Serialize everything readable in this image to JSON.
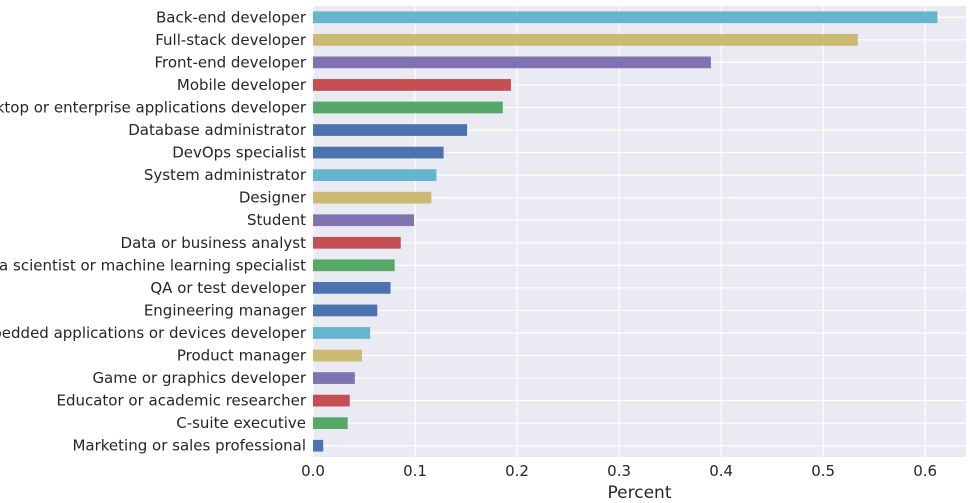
{
  "chart_data": {
    "type": "bar",
    "orientation": "horizontal",
    "title": "",
    "xlabel": "Percent",
    "ylabel": "",
    "xlim": [
      0,
      0.64
    ],
    "grid": true,
    "x_ticks": [
      0.0,
      0.1,
      0.2,
      0.3,
      0.4,
      0.5,
      0.6
    ],
    "x_tick_labels": [
      "0.0",
      "0.1",
      "0.2",
      "0.3",
      "0.4",
      "0.5",
      "0.6"
    ],
    "categories": [
      "Back-end developer",
      "Full-stack developer",
      "Front-end developer",
      "Mobile developer",
      "Desktop or enterprise applications developer",
      "Database administrator",
      "DevOps specialist",
      "System administrator",
      "Designer",
      "Student",
      "Data or business analyst",
      "Data scientist or machine learning specialist",
      "QA or test developer",
      "Engineering manager",
      "Embedded applications or devices developer",
      "Product manager",
      "Game or graphics developer",
      "Educator or academic researcher",
      "C-suite executive",
      "Marketing or sales professional"
    ],
    "values": [
      0.612,
      0.534,
      0.39,
      0.194,
      0.186,
      0.151,
      0.128,
      0.121,
      0.116,
      0.099,
      0.086,
      0.08,
      0.076,
      0.063,
      0.056,
      0.048,
      0.041,
      0.036,
      0.034,
      0.01
    ],
    "colors": [
      "#64b5cd",
      "#ccb974",
      "#8172b2",
      "#c44e52",
      "#55a868",
      "#4c72b0",
      "#4c72b0",
      "#64b5cd",
      "#ccb974",
      "#8172b2",
      "#c44e52",
      "#55a868",
      "#4c72b0",
      "#4c72b0",
      "#64b5cd",
      "#ccb974",
      "#8172b2",
      "#c44e52",
      "#55a868",
      "#4c72b0"
    ],
    "background_color": "#eaeaf2",
    "grid_color": "#ffffff"
  }
}
